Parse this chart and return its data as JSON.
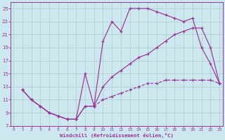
{
  "background_color": "#cce8ee",
  "grid_color": "#aacccc",
  "line_color": "#993399",
  "xlim_min": -0.3,
  "xlim_max": 23.4,
  "ylim_min": 7,
  "ylim_max": 26,
  "xticks": [
    0,
    1,
    2,
    3,
    4,
    5,
    6,
    7,
    8,
    9,
    10,
    11,
    12,
    13,
    14,
    15,
    16,
    17,
    18,
    19,
    20,
    21,
    22,
    23
  ],
  "yticks": [
    7,
    9,
    11,
    13,
    15,
    17,
    19,
    21,
    23,
    25
  ],
  "line_dashed_x": [
    1,
    2,
    3,
    4,
    5,
    6,
    7,
    8,
    9,
    10,
    11,
    12,
    13,
    14,
    15,
    16,
    17,
    18,
    19,
    20,
    21,
    22,
    23
  ],
  "line_dashed_y": [
    12.5,
    11.0,
    10.0,
    9.0,
    8.5,
    8.0,
    8.0,
    10.0,
    10.0,
    11.0,
    11.5,
    12.0,
    12.5,
    13.0,
    13.5,
    13.5,
    14.0,
    14.0,
    14.0,
    14.0,
    14.0,
    14.0,
    13.5
  ],
  "line_top_x": [
    1,
    2,
    3,
    4,
    5,
    6,
    7,
    8,
    9,
    10,
    11,
    12,
    13,
    14,
    15,
    16,
    17,
    18,
    19,
    20,
    21,
    22,
    23
  ],
  "line_top_y": [
    12.5,
    11.0,
    10.0,
    9.0,
    8.5,
    8.0,
    8.0,
    15.0,
    10.0,
    20.0,
    23.0,
    21.5,
    25.0,
    25.0,
    25.0,
    24.5,
    24.0,
    23.5,
    23.0,
    23.5,
    19.0,
    16.5,
    13.5
  ],
  "line_mid_x": [
    1,
    2,
    3,
    4,
    5,
    6,
    7,
    8,
    9,
    10,
    11,
    12,
    13,
    14,
    15,
    16,
    17,
    18,
    19,
    20,
    21,
    22,
    23
  ],
  "line_mid_y": [
    12.5,
    11.0,
    10.0,
    9.0,
    8.5,
    8.0,
    8.0,
    10.0,
    10.0,
    13.0,
    14.5,
    15.5,
    16.5,
    17.5,
    18.0,
    19.0,
    20.0,
    21.0,
    21.5,
    22.0,
    22.0,
    19.0,
    13.5
  ],
  "xlabel": "Windchill (Refroidissement éolien,°C)"
}
